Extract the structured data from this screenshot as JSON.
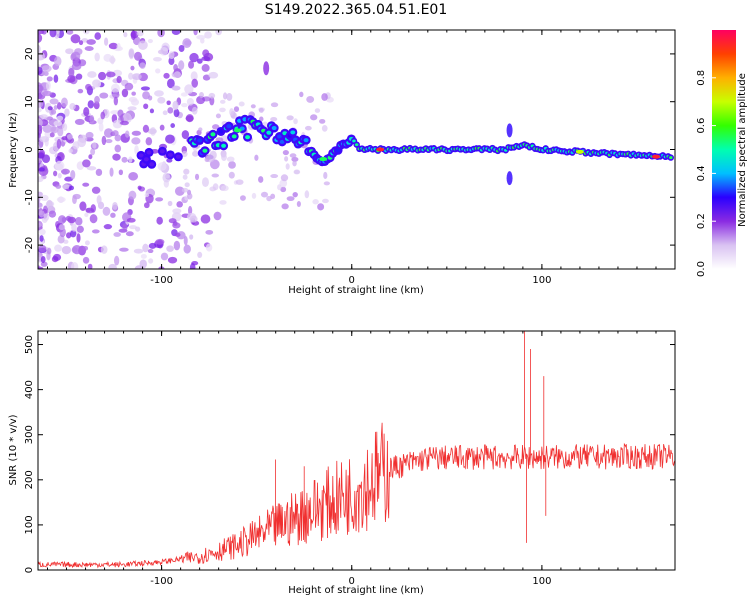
{
  "title": "S149.2022.365.04.51.E01",
  "chart_data": [
    {
      "type": "heatmap",
      "name": "spectrogram",
      "xlabel": "Height of straight line (km)",
      "ylabel": "Frequency (Hz)",
      "xlim": [
        -165,
        170
      ],
      "ylim": [
        -25,
        25
      ],
      "xticks": [
        -100,
        0,
        100
      ],
      "yticks": [
        -20,
        -10,
        0,
        10,
        20
      ],
      "colorbar": {
        "label": "Normalized spectral amplitude",
        "range": [
          0,
          1
        ],
        "ticks": [
          0.0,
          0.2,
          0.4,
          0.6,
          0.8
        ],
        "tick_labels": [
          "0.0",
          "0.2",
          "0.4",
          "0.6",
          "0.8"
        ],
        "colors": [
          "#ffffff",
          "#d9c2f2",
          "#8a2be2",
          "#2a00ff",
          "#00c0ff",
          "#00ffb0",
          "#33ff00",
          "#c8ff00",
          "#ffb000",
          "#ff4000",
          "#ff0060"
        ]
      },
      "ridge": [
        {
          "x": -110,
          "f": -2
        },
        {
          "x": -95,
          "f": -1
        },
        {
          "x": -85,
          "f": 0
        },
        {
          "x": -70,
          "f": 2
        },
        {
          "x": -60,
          "f": 4
        },
        {
          "x": -50,
          "f": 5
        },
        {
          "x": -40,
          "f": 4
        },
        {
          "x": -30,
          "f": 2
        },
        {
          "x": -20,
          "f": -1
        },
        {
          "x": -15,
          "f": -3
        },
        {
          "x": -10,
          "f": -1
        },
        {
          "x": -5,
          "f": 1
        },
        {
          "x": 0,
          "f": 2
        },
        {
          "x": 5,
          "f": 0
        },
        {
          "x": 20,
          "f": 0
        },
        {
          "x": 60,
          "f": 0
        },
        {
          "x": 80,
          "f": 0
        },
        {
          "x": 90,
          "f": 1
        },
        {
          "x": 100,
          "f": 0
        },
        {
          "x": 140,
          "f": -1
        },
        {
          "x": 168,
          "f": -1.5
        }
      ],
      "hot_spots": [
        {
          "x": 15,
          "f": 0,
          "level": 0.95
        },
        {
          "x": 160,
          "f": -1.5,
          "level": 0.95
        },
        {
          "x": 120,
          "f": -0.5,
          "level": 0.7
        },
        {
          "x": -60,
          "f": 4,
          "level": 0.55
        },
        {
          "x": -15,
          "f": -2,
          "level": 0.55
        }
      ],
      "side_lobes": [
        {
          "x": 83,
          "f": 4,
          "level": 0.3
        },
        {
          "x": 83,
          "f": -6,
          "level": 0.3
        },
        {
          "x": -45,
          "f": 17,
          "level": 0.2
        }
      ]
    },
    {
      "type": "line",
      "name": "snr",
      "xlabel": "Height of straight line (km)",
      "ylabel": "SNR (10 * v/v)",
      "xlim": [
        -165,
        170
      ],
      "ylim": [
        0,
        530
      ],
      "xticks": [
        -100,
        0,
        100
      ],
      "yticks": [
        0,
        100,
        200,
        300,
        400,
        500
      ],
      "color": "#f03030",
      "baseline": [
        {
          "x": -165,
          "y": 12
        },
        {
          "x": -120,
          "y": 12
        },
        {
          "x": -100,
          "y": 18
        },
        {
          "x": -80,
          "y": 30
        },
        {
          "x": -60,
          "y": 55
        },
        {
          "x": -40,
          "y": 95
        },
        {
          "x": -20,
          "y": 135
        },
        {
          "x": 0,
          "y": 170
        },
        {
          "x": 20,
          "y": 225
        },
        {
          "x": 40,
          "y": 248
        },
        {
          "x": 60,
          "y": 250
        },
        {
          "x": 100,
          "y": 250
        },
        {
          "x": 170,
          "y": 252
        }
      ],
      "spikes": [
        {
          "x": -40,
          "y": 245
        },
        {
          "x": -25,
          "y": 230
        },
        {
          "x": -10,
          "y": 205
        },
        {
          "x": 91,
          "y": 530
        },
        {
          "x": 92,
          "y": 60
        },
        {
          "x": 94,
          "y": 490
        },
        {
          "x": 101,
          "y": 430
        },
        {
          "x": 102,
          "y": 120
        }
      ]
    }
  ]
}
